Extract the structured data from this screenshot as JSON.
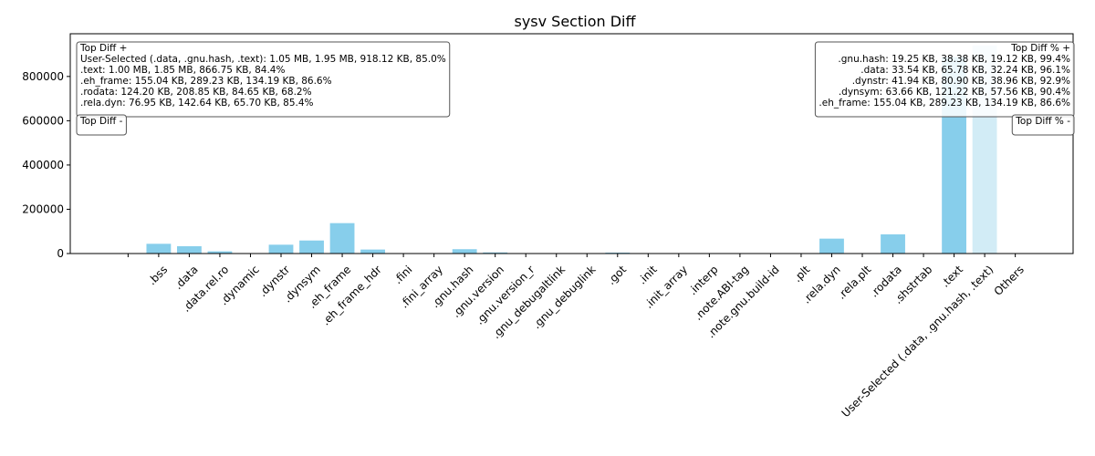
{
  "chart_data": {
    "type": "bar",
    "title": "sysv Section Diff",
    "categories": [
      null,
      ".bss",
      ".data",
      ".data.rel.ro",
      ".dynamic",
      ".dynstr",
      ".dynsym",
      ".eh_frame",
      ".eh_frame_hdr",
      ".fini",
      ".fini_array",
      ".gnu.hash",
      ".gnu.version",
      ".gnu.version_r",
      ".gnu_debugaltlink",
      ".gnu_debuglink",
      ".got",
      ".init",
      ".init_array",
      ".interp",
      ".note.ABI-tag",
      ".note.gnu.build-id",
      ".plt",
      ".rela.dyn",
      ".rela.plt",
      ".rodata",
      ".shstrtab",
      ".text",
      "User-Selected (.data, .gnu.hash, .text)",
      "Others"
    ],
    "values": [
      0,
      44000,
      33000,
      10000,
      2000,
      39900,
      58900,
      137400,
      18000,
      0,
      0,
      19600,
      5000,
      1000,
      0,
      0,
      4000,
      0,
      0,
      0,
      0,
      0,
      0,
      67300,
      0,
      86700,
      0,
      887500,
      940200,
      0
    ],
    "colors": [
      "#87ceeb",
      "#87ceeb",
      "#87ceeb",
      "#87ceeb",
      "#87ceeb",
      "#87ceeb",
      "#87ceeb",
      "#87ceeb",
      "#87ceeb",
      "#87ceeb",
      "#87ceeb",
      "#87ceeb",
      "#87ceeb",
      "#87ceeb",
      "#87ceeb",
      "#87ceeb",
      "#87ceeb",
      "#87ceeb",
      "#87ceeb",
      "#87ceeb",
      "#87ceeb",
      "#87ceeb",
      "#87ceeb",
      "#87ceeb",
      "#87ceeb",
      "#87ceeb",
      "#87ceeb",
      "#87ceeb",
      "#d2ecf6",
      "#87ceeb"
    ],
    "ylim": [
      0,
      993000
    ],
    "yticks": [
      0,
      200000,
      400000,
      600000,
      800000
    ],
    "annotations": [
      {
        "corner": "top-left",
        "lines": [
          "Top Diff +",
          "User-Selected (.data, .gnu.hash, .text): 1.05 MB, 1.95 MB, 918.12 KB, 85.0%",
          ".text: 1.00 MB, 1.85 MB, 866.75 KB, 84.4%",
          ".eh_frame: 155.04 KB, 289.23 KB, 134.19 KB, 86.6%",
          ".rodata: 124.20 KB, 208.85 KB, 84.65 KB, 68.2%",
          ".rela.dyn: 76.95 KB, 142.64 KB, 65.70 KB, 85.4%"
        ]
      },
      {
        "corner": "top-left",
        "lines": [
          "Top Diff -"
        ]
      },
      {
        "corner": "top-right",
        "lines": [
          "Top Diff % +",
          ".gnu.hash: 19.25 KB, 38.38 KB, 19.12 KB, 99.4%",
          ".data: 33.54 KB, 65.78 KB, 32.24 KB, 96.1%",
          ".dynstr: 41.94 KB, 80.90 KB, 38.96 KB, 92.9%",
          ".dynsym: 63.66 KB, 121.22 KB, 57.56 KB, 90.4%",
          ".eh_frame: 155.04 KB, 289.23 KB, 134.19 KB, 86.6%"
        ]
      },
      {
        "corner": "top-right",
        "lines": [
          "Top Diff % -"
        ]
      }
    ]
  }
}
